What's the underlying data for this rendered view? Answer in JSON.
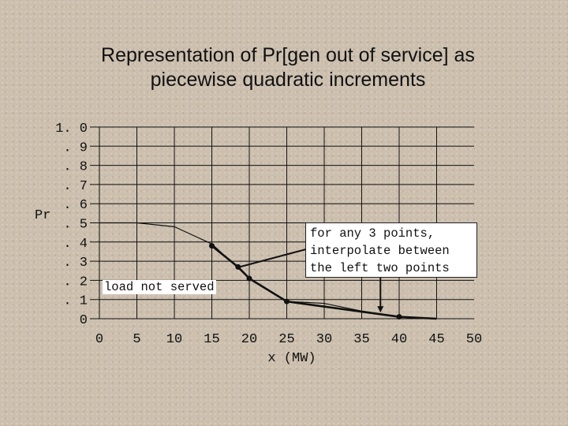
{
  "title_lines": [
    "Representation of  Pr[gen out of service] as",
    "piecewise quadratic increments"
  ],
  "annotation": {
    "lines": [
      "for any 3 points,",
      "interpolate between",
      "the left two points"
    ]
  },
  "chart_data": {
    "type": "line",
    "title": "Representation of  Pr[gen out of service] as piecewise quadratic increments",
    "xlabel": "x (MW)",
    "ylabel": "Pr",
    "xlim": [
      0,
      50
    ],
    "ylim": [
      0,
      1.0
    ],
    "x_ticks": [
      0,
      5,
      10,
      15,
      20,
      25,
      30,
      35,
      40,
      45,
      50
    ],
    "x_tick_labels": [
      "0",
      "5",
      "10",
      "15",
      "20",
      "25",
      "30",
      "35",
      "40",
      "45",
      "50"
    ],
    "y_ticks": [
      0,
      0.1,
      0.2,
      0.3,
      0.4,
      0.5,
      0.6,
      0.7,
      0.8,
      0.9,
      1.0
    ],
    "y_tick_labels": [
      "0",
      ". 1",
      ". 2",
      ". 3",
      ". 4",
      ". 5",
      ". 6",
      ". 7",
      ". 8",
      ". 9",
      "1. 0"
    ],
    "grid": true,
    "region_label": "load not served",
    "series": [
      {
        "style": "thin",
        "x": [
          0,
          5,
          10,
          15,
          20,
          25,
          30,
          35,
          40,
          45
        ],
        "y": [
          0.5,
          0.5,
          0.48,
          0.39,
          0.21,
          0.09,
          0.08,
          0.04,
          0.01,
          0.0
        ]
      },
      {
        "style": "thick",
        "x": [
          15,
          18.5,
          20,
          25,
          40,
          45
        ],
        "y": [
          0.38,
          0.27,
          0.21,
          0.09,
          0.01,
          0.0
        ]
      }
    ],
    "markers": [
      {
        "x": 15,
        "y": 0.38
      },
      {
        "x": 18.5,
        "y": 0.27
      },
      {
        "x": 20,
        "y": 0.21
      },
      {
        "x": 25,
        "y": 0.09
      },
      {
        "x": 40,
        "y": 0.01
      }
    ]
  }
}
